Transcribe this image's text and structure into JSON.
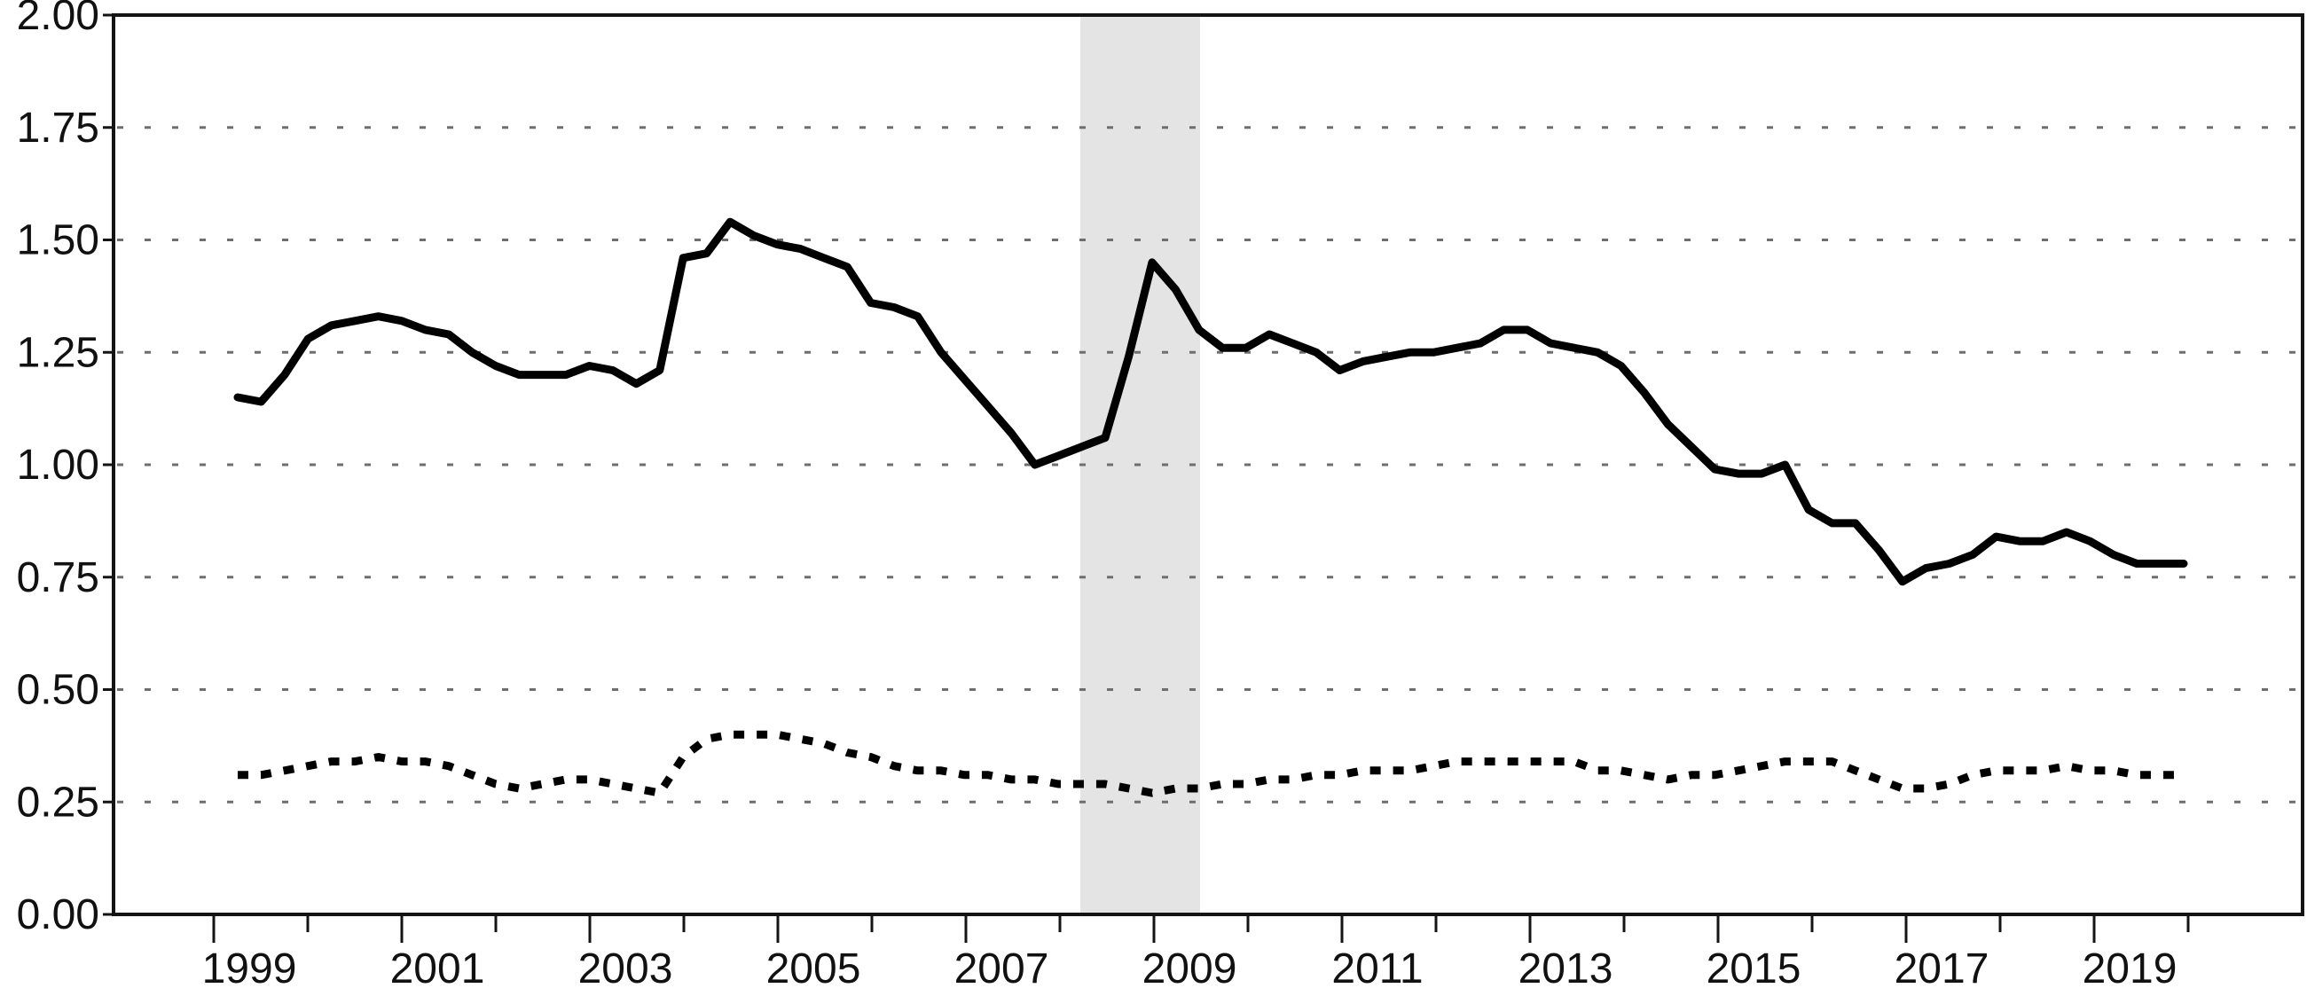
{
  "chart_data": {
    "type": "line",
    "title": "",
    "xlabel": "",
    "ylabel": "",
    "ylim": [
      0.0,
      2.0
    ],
    "y_tick_labels": [
      "0.00",
      "0.25",
      "0.50",
      "0.75",
      "1.00",
      "1.25",
      "1.50",
      "1.75",
      "2.00"
    ],
    "y_tick_values": [
      0.0,
      0.25,
      0.5,
      0.75,
      1.0,
      1.25,
      1.5,
      1.75,
      2.0
    ],
    "x_tick_labels": [
      "1999",
      "2001",
      "2003",
      "2005",
      "2007",
      "2009",
      "2011",
      "2013",
      "2015",
      "2017",
      "2019"
    ],
    "x_range": {
      "start": "1999Q1",
      "end": "2019Q4",
      "frequency": "quarterly",
      "points": 84
    },
    "grid": "dotted horizontal gridlines at each 0.25 step",
    "legend": "none visible",
    "recession_band": {
      "from": "2008Q1",
      "to": "2009Q2",
      "color": "#e4e4e4"
    },
    "series": [
      {
        "name": "upper series (solid line)",
        "style": "solid",
        "color": "#000000",
        "values": [
          1.15,
          1.14,
          1.2,
          1.28,
          1.31,
          1.32,
          1.33,
          1.32,
          1.3,
          1.29,
          1.25,
          1.22,
          1.2,
          1.2,
          1.2,
          1.22,
          1.21,
          1.18,
          1.21,
          1.46,
          1.47,
          1.54,
          1.51,
          1.49,
          1.48,
          1.46,
          1.44,
          1.36,
          1.35,
          1.33,
          1.25,
          1.19,
          1.13,
          1.07,
          1.0,
          1.02,
          1.04,
          1.06,
          1.24,
          1.45,
          1.39,
          1.3,
          1.26,
          1.26,
          1.29,
          1.27,
          1.25,
          1.21,
          1.23,
          1.24,
          1.25,
          1.25,
          1.26,
          1.27,
          1.3,
          1.3,
          1.27,
          1.26,
          1.25,
          1.22,
          1.16,
          1.09,
          1.04,
          0.99,
          0.98,
          0.98,
          1.0,
          0.9,
          0.87,
          0.87,
          0.81,
          0.74,
          0.77,
          0.78,
          0.8,
          0.84,
          0.83,
          0.83,
          0.85,
          0.83,
          0.8,
          0.78,
          0.78,
          0.78
        ]
      },
      {
        "name": "lower series (dotted line)",
        "style": "dotted",
        "color": "#000000",
        "values": [
          0.31,
          0.31,
          0.32,
          0.33,
          0.34,
          0.34,
          0.35,
          0.34,
          0.34,
          0.33,
          0.31,
          0.29,
          0.28,
          0.29,
          0.3,
          0.3,
          0.29,
          0.28,
          0.27,
          0.35,
          0.39,
          0.4,
          0.4,
          0.4,
          0.39,
          0.38,
          0.36,
          0.35,
          0.33,
          0.32,
          0.32,
          0.31,
          0.31,
          0.3,
          0.3,
          0.29,
          0.29,
          0.29,
          0.28,
          0.27,
          0.28,
          0.28,
          0.29,
          0.29,
          0.3,
          0.3,
          0.31,
          0.31,
          0.32,
          0.32,
          0.32,
          0.33,
          0.34,
          0.34,
          0.34,
          0.34,
          0.34,
          0.34,
          0.32,
          0.32,
          0.31,
          0.3,
          0.31,
          0.31,
          0.32,
          0.33,
          0.34,
          0.34,
          0.34,
          0.32,
          0.3,
          0.28,
          0.28,
          0.29,
          0.31,
          0.32,
          0.32,
          0.32,
          0.33,
          0.32,
          0.32,
          0.31,
          0.31,
          0.31
        ]
      }
    ]
  }
}
